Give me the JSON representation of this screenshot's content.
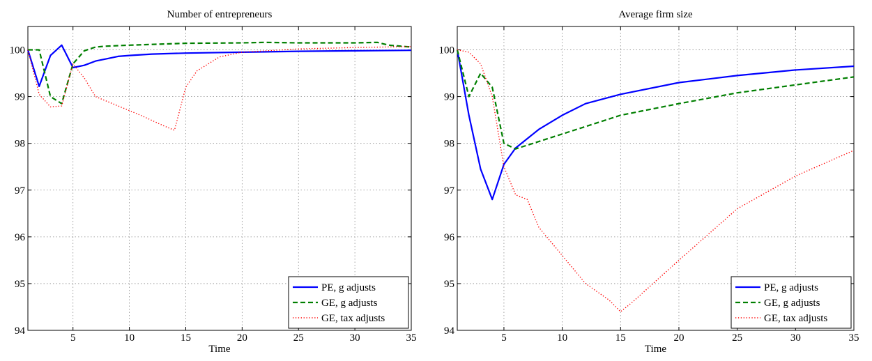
{
  "chart_data": [
    {
      "type": "line",
      "title": "Number of entrepreneurs",
      "xlabel": "Time",
      "ylabel": "",
      "xlim": [
        1,
        35
      ],
      "ylim": [
        94,
        100.5
      ],
      "xticks": [
        5,
        10,
        15,
        20,
        25,
        30,
        35
      ],
      "yticks": [
        94,
        95,
        96,
        97,
        98,
        99,
        100
      ],
      "grid": true,
      "legend_position": "bottom-right",
      "series": [
        {
          "name": "PE, g adjusts",
          "color": "#0000ff",
          "style": "solid",
          "x": [
            1,
            2,
            3,
            4,
            5,
            6,
            7,
            8,
            9,
            10,
            12,
            15,
            20,
            25,
            30,
            35
          ],
          "y": [
            100,
            99.22,
            99.88,
            100.1,
            99.62,
            99.67,
            99.76,
            99.81,
            99.86,
            99.88,
            99.91,
            99.93,
            99.95,
            99.97,
            99.98,
            99.99
          ]
        },
        {
          "name": "GE, g adjusts",
          "color": "#007f00",
          "style": "dashed",
          "x": [
            1,
            2,
            3,
            4,
            5,
            6,
            7,
            8,
            10,
            15,
            20,
            22,
            25,
            30,
            32,
            33,
            35
          ],
          "y": [
            100,
            100,
            99,
            98.85,
            99.7,
            99.98,
            100.06,
            100.08,
            100.1,
            100.14,
            100.15,
            100.16,
            100.15,
            100.15,
            100.16,
            100.1,
            100.06
          ]
        },
        {
          "name": "GE, tax adjusts",
          "color": "#ff0000",
          "style": "dotted",
          "x": [
            1,
            2,
            3,
            4,
            5,
            6,
            7,
            9,
            11,
            13,
            14,
            15,
            16,
            18,
            20,
            25,
            30,
            35
          ],
          "y": [
            100,
            99.05,
            98.78,
            98.8,
            99.7,
            99.4,
            99,
            98.8,
            98.6,
            98.38,
            98.28,
            99.2,
            99.55,
            99.85,
            99.95,
            100.02,
            100.05,
            100.07
          ]
        }
      ]
    },
    {
      "type": "line",
      "title": "Average firm size",
      "xlabel": "Time",
      "ylabel": "",
      "xlim": [
        1,
        35
      ],
      "ylim": [
        94,
        100.5
      ],
      "xticks": [
        5,
        10,
        15,
        20,
        25,
        30,
        35
      ],
      "yticks": [
        94,
        95,
        96,
        97,
        98,
        99,
        100
      ],
      "grid": true,
      "legend_position": "bottom-right",
      "series": [
        {
          "name": "PE, g adjusts",
          "color": "#0000ff",
          "style": "solid",
          "x": [
            1,
            2,
            3,
            4,
            5,
            6,
            7,
            8,
            10,
            12,
            15,
            20,
            25,
            30,
            35
          ],
          "y": [
            100,
            98.6,
            97.45,
            96.8,
            97.55,
            97.9,
            98.1,
            98.3,
            98.6,
            98.85,
            99.05,
            99.3,
            99.45,
            99.57,
            99.65
          ]
        },
        {
          "name": "GE, g adjusts",
          "color": "#007f00",
          "style": "dashed",
          "x": [
            1,
            2,
            3,
            4,
            5,
            6,
            10,
            15,
            20,
            25,
            30,
            35
          ],
          "y": [
            100,
            99,
            99.5,
            99.2,
            98,
            97.88,
            98.2,
            98.6,
            98.85,
            99.08,
            99.25,
            99.42
          ]
        },
        {
          "name": "GE, tax adjusts",
          "color": "#ff0000",
          "style": "dotted",
          "x": [
            1,
            2,
            3,
            4,
            5,
            6,
            7,
            8,
            10,
            12,
            14,
            15,
            16,
            18,
            20,
            25,
            30,
            35
          ],
          "y": [
            100,
            99.95,
            99.7,
            99,
            97.5,
            96.9,
            96.8,
            96.2,
            95.6,
            95,
            94.65,
            94.4,
            94.6,
            95.05,
            95.5,
            96.6,
            97.3,
            97.85
          ]
        }
      ]
    }
  ]
}
